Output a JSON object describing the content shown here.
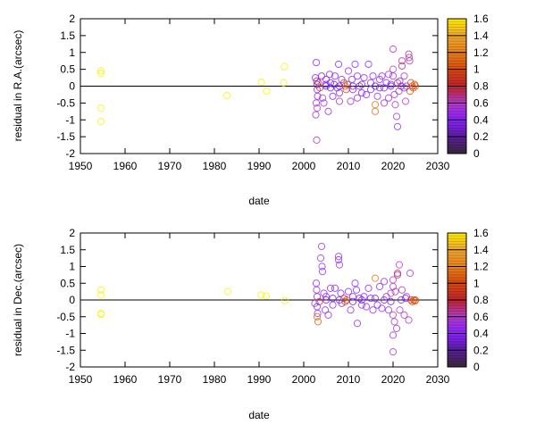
{
  "palette": {
    "stops": [
      [
        0,
        "#3a2838"
      ],
      [
        0.2,
        "#5a1e9e"
      ],
      [
        0.4,
        "#8a22ff"
      ],
      [
        0.6,
        "#b23cc8"
      ],
      [
        0.8,
        "#c0242c"
      ],
      [
        1.0,
        "#d84a10"
      ],
      [
        1.2,
        "#e8821c"
      ],
      [
        1.4,
        "#f0a830"
      ],
      [
        1.6,
        "#fff000"
      ]
    ]
  },
  "chart_data": [
    {
      "type": "scatter",
      "xlabel": "date",
      "ylabel": "residual in R.A.(arcsec)",
      "xlim": [
        1950,
        2030
      ],
      "ylim": [
        -2,
        2
      ],
      "xticks": [
        "1950",
        "1960",
        "1970",
        "1980",
        "1990",
        "2000",
        "2010",
        "2020",
        "2030"
      ],
      "yticks": [
        "-2",
        "-1.5",
        "-1",
        "-0.5",
        "0",
        "0.5",
        "1",
        "1.5",
        "2"
      ],
      "zero_line": true,
      "colorbar": {
        "range": [
          0,
          1.6
        ],
        "ticks": [
          "0",
          "0.2",
          "0.4",
          "0.6",
          "0.8",
          "1",
          "1.2",
          "1.4",
          "1.6"
        ]
      },
      "points": [
        [
          1954.6,
          0.45,
          1.6
        ],
        [
          1954.6,
          0.38,
          1.6
        ],
        [
          1954.6,
          -0.65,
          1.6
        ],
        [
          1954.6,
          -1.05,
          1.6
        ],
        [
          1982.8,
          -0.28,
          1.6
        ],
        [
          1990.5,
          0.12,
          1.6
        ],
        [
          1991.7,
          -0.15,
          1.6
        ],
        [
          1995.7,
          0.58,
          1.6
        ],
        [
          1995.5,
          0.1,
          1.6
        ],
        [
          2002.8,
          0.7,
          0.45
        ],
        [
          2002.6,
          0.25,
          0.45
        ],
        [
          2002.9,
          0.15,
          0.4
        ],
        [
          2003,
          0.05,
          0.3
        ],
        [
          2003,
          -0.1,
          0.4
        ],
        [
          2003.1,
          -0.3,
          0.45
        ],
        [
          2002.8,
          -0.5,
          0.5
        ],
        [
          2003,
          -0.65,
          0.6
        ],
        [
          2002.7,
          -0.85,
          0.5
        ],
        [
          2002.9,
          -1.6,
          0.55
        ],
        [
          2003.3,
          0.1,
          0.9
        ],
        [
          2003.6,
          -0.05,
          0.9
        ],
        [
          2004,
          0.3,
          0.4
        ],
        [
          2004.2,
          -0.35,
          0.5
        ],
        [
          2004.5,
          -0.5,
          0.55
        ],
        [
          2005,
          0.2,
          0.45
        ],
        [
          2005,
          0.0,
          0.35
        ],
        [
          2005.5,
          -0.75,
          0.5
        ],
        [
          2005.8,
          0.35,
          0.45
        ],
        [
          2006,
          0.1,
          0.4
        ],
        [
          2006.5,
          -0.3,
          0.4
        ],
        [
          2006.8,
          0.05,
          0.3
        ],
        [
          2007,
          0.3,
          0.45
        ],
        [
          2007.5,
          -0.05,
          0.4
        ],
        [
          2007.8,
          0.65,
          0.45
        ],
        [
          2008,
          -0.2,
          0.5
        ],
        [
          2008,
          -0.45,
          0.5
        ],
        [
          2008.5,
          0.2,
          0.45
        ],
        [
          2009,
          0.1,
          0.95
        ],
        [
          2009.3,
          0.0,
          1.0
        ],
        [
          2009.5,
          -0.1,
          0.95
        ],
        [
          2009.8,
          0.05,
          0.9
        ],
        [
          2010,
          0.45,
          0.45
        ],
        [
          2010.5,
          -0.45,
          0.5
        ],
        [
          2010.8,
          0.2,
          0.45
        ],
        [
          2011,
          -0.1,
          0.4
        ],
        [
          2011.5,
          0.65,
          0.45
        ],
        [
          2012,
          0.3,
          0.45
        ],
        [
          2012,
          -0.35,
          0.5
        ],
        [
          2012.5,
          0.0,
          0.35
        ],
        [
          2013,
          -0.2,
          0.4
        ],
        [
          2013.5,
          0.25,
          0.45
        ],
        [
          2014,
          -0.25,
          0.45
        ],
        [
          2014.5,
          0.65,
          0.45
        ],
        [
          2015,
          0.1,
          0.4
        ],
        [
          2015,
          -0.1,
          0.4
        ],
        [
          2015.5,
          0.3,
          0.45
        ],
        [
          2016,
          -0.55,
          1.15
        ],
        [
          2016,
          -0.75,
          1.15
        ],
        [
          2016.5,
          -0.3,
          0.5
        ],
        [
          2017,
          0.2,
          0.45
        ],
        [
          2017,
          -0.05,
          0.35
        ],
        [
          2017.5,
          0.3,
          0.5
        ],
        [
          2018,
          -0.5,
          0.5
        ],
        [
          2018.5,
          0.1,
          0.45
        ],
        [
          2019,
          -0.35,
          0.5
        ],
        [
          2019,
          0.35,
          0.6
        ],
        [
          2019.5,
          0.05,
          0.4
        ],
        [
          2020,
          1.1,
          0.55
        ],
        [
          2020,
          0.5,
          0.6
        ],
        [
          2020,
          0.3,
          0.5
        ],
        [
          2020.3,
          -0.25,
          0.6
        ],
        [
          2020.5,
          -0.55,
          0.55
        ],
        [
          2020.8,
          -0.9,
          0.55
        ],
        [
          2021,
          -1.2,
          0.5
        ],
        [
          2021,
          0.1,
          0.7
        ],
        [
          2021.3,
          -0.15,
          0.65
        ],
        [
          2021.5,
          0.15,
          0.5
        ],
        [
          2022,
          0.75,
          0.65
        ],
        [
          2022,
          0.6,
          0.7
        ],
        [
          2022.5,
          0.3,
          0.55
        ],
        [
          2022.8,
          -0.45,
          0.6
        ],
        [
          2023,
          0.0,
          0.5
        ],
        [
          2023.5,
          0.95,
          0.65
        ],
        [
          2023.6,
          0.85,
          0.65
        ],
        [
          2023.7,
          0.75,
          0.6
        ],
        [
          2024,
          0.1,
          1.0
        ],
        [
          2024.3,
          0.0,
          1.0
        ],
        [
          2024.5,
          -0.05,
          1.05
        ],
        [
          2024.8,
          0.05,
          1.0
        ],
        [
          2025,
          0.0,
          1.05
        ],
        [
          2023.8,
          -0.15,
          1.0
        ],
        [
          2005,
          0.05,
          0.35
        ],
        [
          2006,
          -0.05,
          0.3
        ],
        [
          2008,
          0.0,
          0.35
        ],
        [
          2011,
          0.0,
          0.3
        ],
        [
          2013,
          0.05,
          0.35
        ],
        [
          2016,
          0.0,
          0.3
        ],
        [
          2018,
          -0.05,
          0.35
        ],
        [
          2019.5,
          0.0,
          0.3
        ],
        [
          2021.8,
          0.0,
          0.35
        ],
        [
          2022.5,
          -0.05,
          0.4
        ]
      ]
    },
    {
      "type": "scatter",
      "xlabel": "date",
      "ylabel": "residual in Dec.(arcsec)",
      "xlim": [
        1950,
        2030
      ],
      "ylim": [
        -2,
        2
      ],
      "xticks": [
        "1950",
        "1960",
        "1970",
        "1980",
        "1990",
        "2000",
        "2010",
        "2020",
        "2030"
      ],
      "yticks": [
        "-2",
        "-1.5",
        "-1",
        "-0.5",
        "0",
        "0.5",
        "1",
        "1.5",
        "2"
      ],
      "zero_line": true,
      "colorbar": {
        "range": [
          0,
          1.6
        ],
        "ticks": [
          "0",
          "0.2",
          "0.4",
          "0.6",
          "0.8",
          "1",
          "1.2",
          "1.4",
          "1.6"
        ]
      },
      "points": [
        [
          1954.6,
          0.3,
          1.6
        ],
        [
          1954.6,
          0.15,
          1.6
        ],
        [
          1954.6,
          -0.4,
          1.6
        ],
        [
          1954.6,
          -0.43,
          1.6
        ],
        [
          1983,
          0.25,
          1.6
        ],
        [
          1990.5,
          0.15,
          1.6
        ],
        [
          1991.6,
          0.12,
          1.6
        ],
        [
          1995.8,
          -0.02,
          1.6
        ],
        [
          2002.5,
          -0.1,
          0.45
        ],
        [
          2002.8,
          0.5,
          0.45
        ],
        [
          2002.9,
          0.3,
          0.45
        ],
        [
          2003,
          0.1,
          0.4
        ],
        [
          2003,
          -0.2,
          0.4
        ],
        [
          2003.1,
          -0.4,
          0.5
        ],
        [
          2003,
          -0.5,
          1.1
        ],
        [
          2003.2,
          -0.65,
          1.1
        ],
        [
          2003.5,
          -0.05,
          0.9
        ],
        [
          2003.8,
          1.25,
          0.5
        ],
        [
          2004.1,
          1.0,
          0.5
        ],
        [
          2004.2,
          0.85,
          0.45
        ],
        [
          2004,
          1.6,
          0.5
        ],
        [
          2004.5,
          0.2,
          0.45
        ],
        [
          2004.8,
          -0.3,
          0.45
        ],
        [
          2005,
          0.1,
          0.4
        ],
        [
          2005.5,
          -0.45,
          0.45
        ],
        [
          2006,
          0.35,
          0.45
        ],
        [
          2006.5,
          -0.15,
          0.4
        ],
        [
          2007,
          0.35,
          0.45
        ],
        [
          2007.8,
          1.3,
          0.45
        ],
        [
          2007.8,
          1.2,
          0.45
        ],
        [
          2008,
          1.05,
          0.5
        ],
        [
          2008.3,
          0.2,
          0.4
        ],
        [
          2008.5,
          -0.1,
          0.35
        ],
        [
          2009,
          0.05,
          0.95
        ],
        [
          2009.3,
          -0.05,
          1.0
        ],
        [
          2009.6,
          0.0,
          0.95
        ],
        [
          2010,
          0.25,
          0.45
        ],
        [
          2010.5,
          -0.3,
          0.45
        ],
        [
          2011,
          0.1,
          0.4
        ],
        [
          2011.5,
          0.5,
          0.45
        ],
        [
          2011.8,
          0.3,
          0.45
        ],
        [
          2012,
          -0.7,
          0.45
        ],
        [
          2012.5,
          0.05,
          0.35
        ],
        [
          2013,
          -0.15,
          0.4
        ],
        [
          2013.5,
          0.1,
          0.4
        ],
        [
          2014,
          -0.2,
          0.45
        ],
        [
          2014.5,
          0.35,
          0.45
        ],
        [
          2015,
          0.05,
          0.4
        ],
        [
          2015.5,
          -0.3,
          0.45
        ],
        [
          2016,
          0.65,
          1.15
        ],
        [
          2016.5,
          -0.15,
          0.4
        ],
        [
          2017,
          0.4,
          0.45
        ],
        [
          2017.5,
          -0.25,
          0.45
        ],
        [
          2018,
          0.55,
          0.5
        ],
        [
          2018.5,
          0.1,
          0.45
        ],
        [
          2019,
          -0.3,
          0.5
        ],
        [
          2019.5,
          0.2,
          0.6
        ],
        [
          2020,
          0.6,
          0.6
        ],
        [
          2020,
          0.4,
          0.55
        ],
        [
          2020,
          -0.45,
          0.6
        ],
        [
          2020.3,
          -0.65,
          0.6
        ],
        [
          2020,
          -1.05,
          0.55
        ],
        [
          2020,
          -1.55,
          0.55
        ],
        [
          2020.5,
          0.25,
          0.65
        ],
        [
          2020.8,
          -0.85,
          0.55
        ],
        [
          2021,
          0.75,
          0.7
        ],
        [
          2021,
          0.8,
          0.7
        ],
        [
          2021.4,
          1.05,
          0.6
        ],
        [
          2021.5,
          -0.3,
          0.6
        ],
        [
          2022,
          0.3,
          0.55
        ],
        [
          2022.5,
          -0.45,
          0.6
        ],
        [
          2023,
          0.1,
          0.5
        ],
        [
          2023.5,
          -0.6,
          0.55
        ],
        [
          2023.8,
          0.8,
          0.55
        ],
        [
          2024,
          0.0,
          1.0
        ],
        [
          2024.3,
          -0.05,
          1.0
        ],
        [
          2024.6,
          0.0,
          1.05
        ],
        [
          2024.9,
          -0.03,
          1.0
        ],
        [
          2025,
          0.0,
          1.05
        ],
        [
          2005,
          0.0,
          0.35
        ],
        [
          2006.5,
          0.05,
          0.3
        ],
        [
          2008,
          0.0,
          0.35
        ],
        [
          2011,
          -0.05,
          0.3
        ],
        [
          2013,
          0.0,
          0.35
        ],
        [
          2016,
          0.05,
          0.3
        ],
        [
          2018,
          0.0,
          0.35
        ],
        [
          2019.5,
          -0.05,
          0.3
        ],
        [
          2021.8,
          0.0,
          0.35
        ],
        [
          2022.8,
          0.05,
          0.4
        ]
      ]
    }
  ]
}
